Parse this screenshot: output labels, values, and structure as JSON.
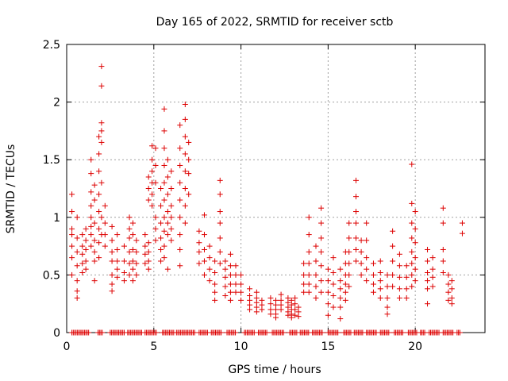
{
  "chart_data": {
    "type": "scatter",
    "title": "Day 165 of 2022, SRMTID for receiver sctb",
    "xlabel": "GPS time / hours",
    "ylabel": "SRMTID / TECUs",
    "xlim": [
      0,
      24
    ],
    "ylim": [
      0,
      2.5
    ],
    "xticks": [
      0,
      5,
      10,
      15,
      20
    ],
    "yticks": [
      0,
      0.5,
      1,
      1.5,
      2,
      2.5
    ],
    "xtick_labels": [
      "0",
      "5",
      "10",
      "15",
      "20"
    ],
    "ytick_labels": [
      "0",
      "0.5",
      "1",
      "1.5",
      "2",
      "2.5"
    ],
    "grid": true,
    "marker": "+",
    "color": "#dd0000",
    "clusters": [
      {
        "x": 0.3,
        "values": [
          1.2,
          1.05,
          0.9,
          0.75,
          0.65,
          0.5,
          0.85
        ]
      },
      {
        "x": 0.6,
        "values": [
          1.0,
          0.82,
          0.7,
          0.58,
          0.45,
          0.36,
          0.3
        ]
      },
      {
        "x": 0.9,
        "values": [
          0.85,
          0.75,
          0.68,
          0.6,
          0.52
        ]
      },
      {
        "x": 1.1,
        "values": [
          0.9,
          0.8,
          0.72,
          0.62,
          0.55
        ]
      },
      {
        "x": 1.4,
        "values": [
          1.5,
          1.38,
          1.22,
          1.1,
          1.0,
          0.92,
          0.85,
          0.75
        ]
      },
      {
        "x": 1.6,
        "values": [
          1.28,
          1.15,
          0.95,
          0.8,
          0.7,
          0.62,
          0.45
        ]
      },
      {
        "x": 1.85,
        "values": [
          1.7,
          1.55,
          1.4,
          1.2,
          1.05,
          0.9,
          0.78,
          0.65
        ]
      },
      {
        "x": 2.0,
        "values": [
          2.31,
          2.14,
          1.82,
          1.75,
          1.65,
          1.3,
          1.0,
          0.85
        ]
      },
      {
        "x": 2.2,
        "values": [
          1.1,
          0.95,
          0.85,
          0.75
        ]
      },
      {
        "x": 2.6,
        "values": [
          0.92,
          0.8,
          0.7,
          0.62,
          0.5,
          0.42,
          0.36
        ]
      },
      {
        "x": 2.9,
        "values": [
          0.85,
          0.72,
          0.62,
          0.55,
          0.48
        ]
      },
      {
        "x": 3.3,
        "values": [
          0.75,
          0.62,
          0.52,
          0.45
        ]
      },
      {
        "x": 3.6,
        "values": [
          1.0,
          0.9,
          0.82,
          0.7,
          0.6,
          0.5
        ]
      },
      {
        "x": 3.8,
        "values": [
          0.95,
          0.85,
          0.72,
          0.62,
          0.55,
          0.45
        ]
      },
      {
        "x": 4.0,
        "values": [
          0.8,
          0.7,
          0.6,
          0.5
        ]
      },
      {
        "x": 4.5,
        "values": [
          0.85,
          0.75,
          0.68,
          0.6
        ]
      },
      {
        "x": 4.7,
        "values": [
          1.35,
          1.25,
          1.15,
          0.78,
          0.7,
          0.62,
          0.55
        ]
      },
      {
        "x": 4.9,
        "values": [
          1.62,
          1.5,
          1.4,
          1.3,
          1.2,
          1.1
        ]
      },
      {
        "x": 5.1,
        "values": [
          1.6,
          1.45,
          1.3,
          1.0,
          0.9,
          0.8
        ]
      },
      {
        "x": 5.4,
        "values": [
          1.25,
          1.1,
          0.95,
          0.82,
          0.72,
          0.62
        ]
      },
      {
        "x": 5.6,
        "values": [
          1.94,
          1.75,
          1.6,
          1.45,
          1.3,
          1.15,
          1.0,
          0.88,
          0.75,
          0.65
        ]
      },
      {
        "x": 5.8,
        "values": [
          1.5,
          1.35,
          1.2,
          1.05,
          0.95,
          0.85,
          0.55
        ]
      },
      {
        "x": 6.0,
        "values": [
          1.4,
          1.25,
          1.1,
          1.0,
          0.9,
          0.8
        ]
      },
      {
        "x": 6.5,
        "values": [
          1.8,
          1.6,
          1.45,
          1.3,
          1.15,
          1.0,
          0.85,
          0.72,
          0.58
        ]
      },
      {
        "x": 6.8,
        "values": [
          1.98,
          1.85,
          1.7,
          1.55,
          1.4,
          1.25,
          1.1,
          0.95
        ]
      },
      {
        "x": 7.0,
        "values": [
          1.65,
          1.5,
          1.38,
          1.2
        ]
      },
      {
        "x": 7.6,
        "values": [
          0.88,
          0.78,
          0.7,
          0.6
        ]
      },
      {
        "x": 7.9,
        "values": [
          1.02,
          0.85,
          0.72,
          0.62,
          0.5
        ]
      },
      {
        "x": 8.2,
        "values": [
          0.75,
          0.65,
          0.55,
          0.45
        ]
      },
      {
        "x": 8.5,
        "values": [
          0.62,
          0.52,
          0.42,
          0.35,
          0.28
        ]
      },
      {
        "x": 8.8,
        "values": [
          1.32,
          1.2,
          1.05,
          0.95,
          0.82,
          0.7,
          0.6
        ]
      },
      {
        "x": 9.1,
        "values": [
          0.62,
          0.55,
          0.48,
          0.4,
          0.32
        ]
      },
      {
        "x": 9.4,
        "values": [
          0.68,
          0.58,
          0.5,
          0.42,
          0.35,
          0.28
        ]
      },
      {
        "x": 9.7,
        "values": [
          0.58,
          0.5,
          0.42,
          0.35
        ]
      },
      {
        "x": 10.0,
        "values": [
          0.5,
          0.42,
          0.35,
          0.28
        ]
      },
      {
        "x": 10.5,
        "values": [
          0.38,
          0.32,
          0.28,
          0.24,
          0.2
        ]
      },
      {
        "x": 10.9,
        "values": [
          0.35,
          0.3,
          0.26,
          0.22,
          0.18
        ]
      },
      {
        "x": 11.2,
        "values": [
          0.28,
          0.24,
          0.2
        ]
      },
      {
        "x": 11.7,
        "values": [
          0.3,
          0.25,
          0.2,
          0.16
        ]
      },
      {
        "x": 12.0,
        "values": [
          0.28,
          0.24,
          0.2,
          0.16,
          0.13
        ]
      },
      {
        "x": 12.3,
        "values": [
          0.33,
          0.28,
          0.24,
          0.2
        ]
      },
      {
        "x": 12.7,
        "values": [
          0.3,
          0.26,
          0.22,
          0.18,
          0.15
        ]
      },
      {
        "x": 12.9,
        "values": [
          0.28,
          0.24,
          0.2,
          0.16,
          0.13
        ]
      },
      {
        "x": 13.1,
        "values": [
          0.3,
          0.25,
          0.2,
          0.15
        ]
      },
      {
        "x": 13.3,
        "values": [
          0.22,
          0.18,
          0.14
        ]
      },
      {
        "x": 13.6,
        "values": [
          0.6,
          0.5,
          0.42,
          0.35
        ]
      },
      {
        "x": 13.9,
        "values": [
          1.0,
          0.85,
          0.7,
          0.6,
          0.5,
          0.42,
          0.35
        ]
      },
      {
        "x": 14.3,
        "values": [
          0.75,
          0.62,
          0.5,
          0.4,
          0.3
        ]
      },
      {
        "x": 14.6,
        "values": [
          1.08,
          0.95,
          0.82,
          0.7,
          0.58,
          0.45,
          0.35
        ]
      },
      {
        "x": 15.0,
        "values": [
          0.55,
          0.45,
          0.35,
          0.25,
          0.15
        ]
      },
      {
        "x": 15.3,
        "values": [
          0.65,
          0.52,
          0.42,
          0.32,
          0.22
        ]
      },
      {
        "x": 15.7,
        "values": [
          0.55,
          0.45,
          0.38,
          0.3,
          0.22,
          0.12
        ]
      },
      {
        "x": 16.0,
        "values": [
          0.7,
          0.6,
          0.5,
          0.42,
          0.35,
          0.28
        ]
      },
      {
        "x": 16.2,
        "values": [
          0.95,
          0.82,
          0.7,
          0.6,
          0.5,
          0.4
        ]
      },
      {
        "x": 16.6,
        "values": [
          1.32,
          1.18,
          1.05,
          0.95,
          0.82,
          0.72,
          0.62
        ]
      },
      {
        "x": 16.9,
        "values": [
          0.8,
          0.7,
          0.6,
          0.5
        ]
      },
      {
        "x": 17.2,
        "values": [
          0.95,
          0.8,
          0.65,
          0.55,
          0.45
        ]
      },
      {
        "x": 17.6,
        "values": [
          0.6,
          0.5,
          0.42,
          0.35
        ]
      },
      {
        "x": 18.0,
        "values": [
          0.62,
          0.52,
          0.45,
          0.38,
          0.3
        ]
      },
      {
        "x": 18.4,
        "values": [
          0.5,
          0.4,
          0.3,
          0.22,
          0.16
        ]
      },
      {
        "x": 18.7,
        "values": [
          0.88,
          0.75,
          0.62,
          0.5,
          0.4
        ]
      },
      {
        "x": 19.1,
        "values": [
          0.68,
          0.58,
          0.48,
          0.38,
          0.3
        ]
      },
      {
        "x": 19.5,
        "values": [
          0.58,
          0.48,
          0.38,
          0.3
        ]
      },
      {
        "x": 19.8,
        "values": [
          1.46,
          1.12,
          0.95,
          0.82,
          0.7,
          0.6,
          0.5,
          0.4
        ]
      },
      {
        "x": 20.0,
        "values": [
          1.05,
          0.9,
          0.78,
          0.65,
          0.55,
          0.45
        ]
      },
      {
        "x": 20.7,
        "values": [
          0.72,
          0.62,
          0.52,
          0.45,
          0.38,
          0.25
        ]
      },
      {
        "x": 21.0,
        "values": [
          0.65,
          0.55,
          0.48,
          0.4
        ]
      },
      {
        "x": 21.6,
        "values": [
          1.08,
          0.95,
          0.72,
          0.62,
          0.52
        ]
      },
      {
        "x": 21.9,
        "values": [
          0.5,
          0.42,
          0.35,
          0.28
        ]
      },
      {
        "x": 22.1,
        "values": [
          0.45,
          0.38,
          0.3,
          0.25
        ]
      },
      {
        "x": 22.7,
        "values": [
          0.95,
          0.86
        ]
      }
    ],
    "zero_segments": [
      [
        0.3,
        1.3
      ],
      [
        1.8,
        2.1
      ],
      [
        2.5,
        3.3
      ],
      [
        3.5,
        4.3
      ],
      [
        4.5,
        5.2
      ],
      [
        5.5,
        6.2
      ],
      [
        6.3,
        7.4
      ],
      [
        7.6,
        8.1
      ],
      [
        8.3,
        8.9
      ],
      [
        9.2,
        9.7
      ],
      [
        10.2,
        10.8
      ],
      [
        11.0,
        11.5
      ],
      [
        11.8,
        12.5
      ],
      [
        12.8,
        13.2
      ],
      [
        13.4,
        13.9
      ],
      [
        14.1,
        14.7
      ],
      [
        15.0,
        15.6
      ],
      [
        15.9,
        16.3
      ],
      [
        16.5,
        17.0
      ],
      [
        17.2,
        17.8
      ],
      [
        18.0,
        18.5
      ],
      [
        18.8,
        19.3
      ],
      [
        19.6,
        20.1
      ],
      [
        20.3,
        20.6
      ],
      [
        20.8,
        21.4
      ],
      [
        21.6,
        22.2
      ],
      [
        22.4,
        22.6
      ]
    ]
  }
}
